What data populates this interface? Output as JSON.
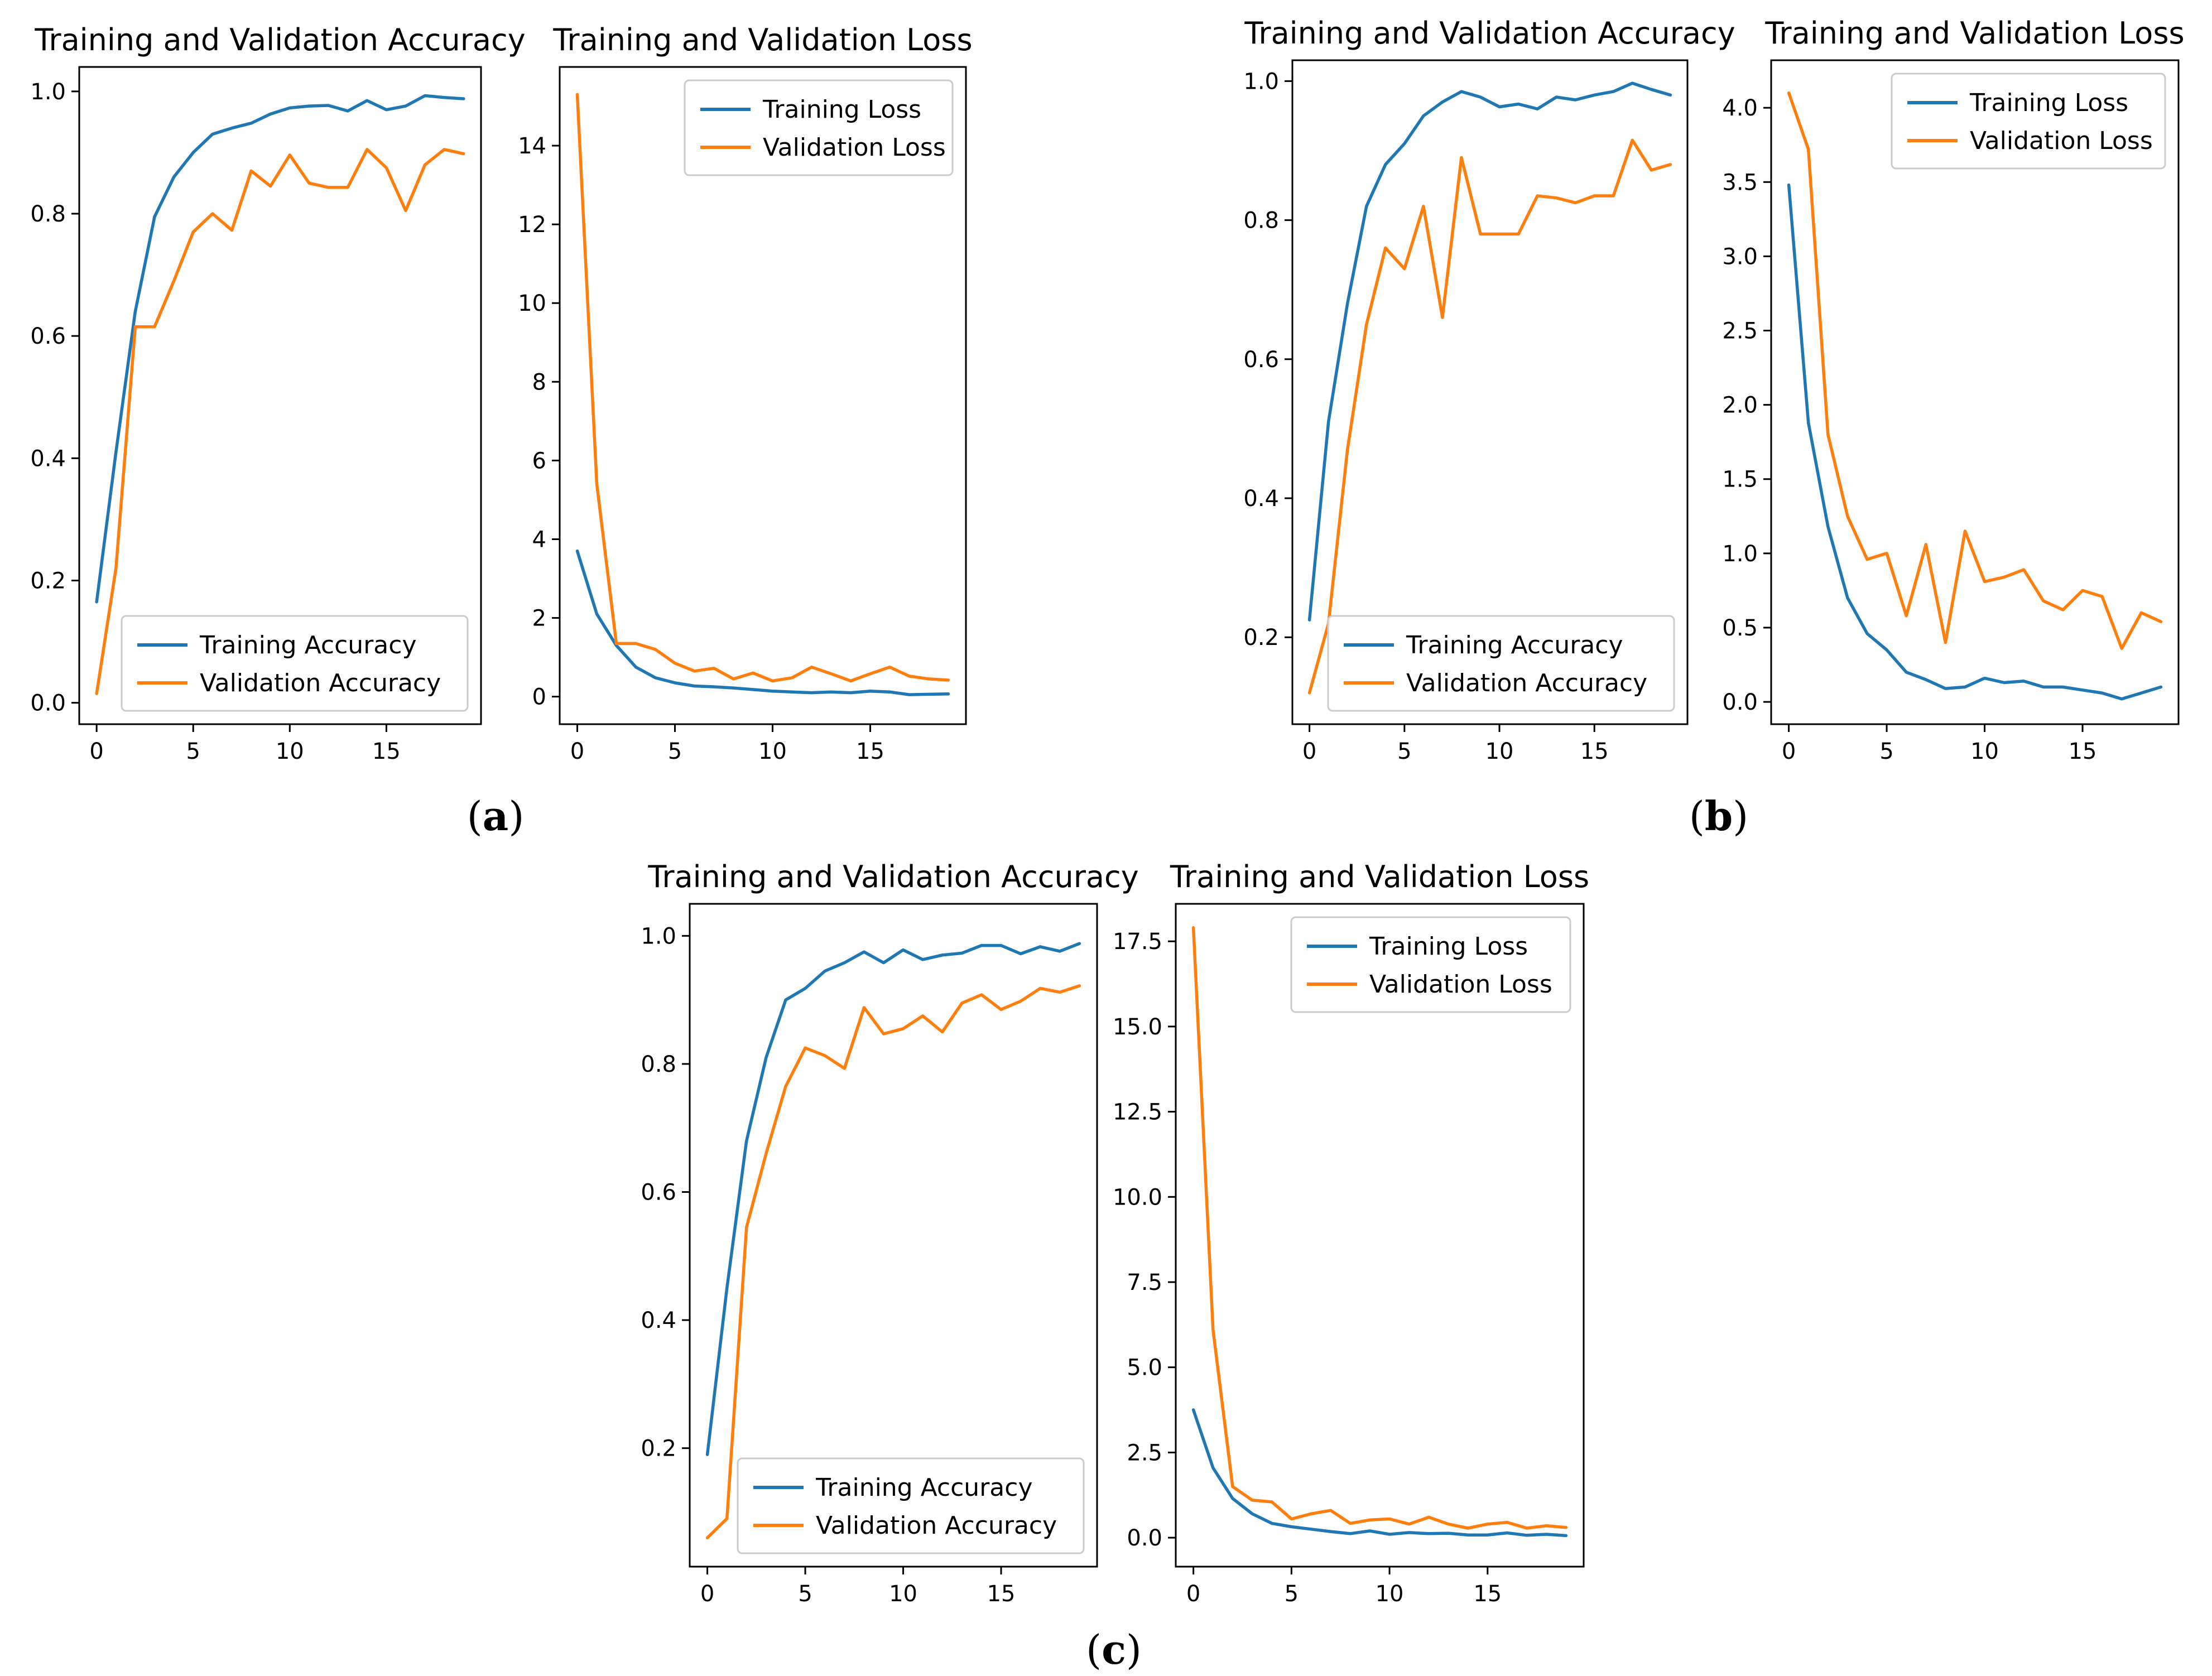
{
  "colors": {
    "training": "#1f77b4",
    "validation": "#ff7f0e"
  },
  "panels": [
    {
      "label": "(a)"
    },
    {
      "label": "(b)"
    },
    {
      "label": "(c)"
    }
  ],
  "chart_data": [
    {
      "type": "line",
      "panel": "(a)",
      "title": "Training and Validation Accuracy",
      "xlabel": "",
      "ylabel": "",
      "x": [
        0,
        1,
        2,
        3,
        4,
        5,
        6,
        7,
        8,
        9,
        10,
        11,
        12,
        13,
        14,
        15,
        16,
        17,
        18,
        19
      ],
      "xlim": [
        -0.9,
        19.9
      ],
      "ylim": [
        -0.035,
        1.04
      ],
      "xticks": [
        0,
        5,
        10,
        15
      ],
      "xtick_labels": [
        "0",
        "5",
        "10",
        "15"
      ],
      "yticks": [
        0,
        0.2,
        0.4,
        0.6,
        0.8,
        1.0
      ],
      "ytick_labels": [
        "0.0",
        "0.2",
        "0.4",
        "0.6",
        "0.8",
        "1.0"
      ],
      "legend": "lower-right",
      "series": [
        {
          "name": "Training Accuracy",
          "values": [
            0.165,
            0.41,
            0.64,
            0.795,
            0.86,
            0.9,
            0.93,
            0.94,
            0.948,
            0.963,
            0.973,
            0.976,
            0.977,
            0.968,
            0.985,
            0.97,
            0.976,
            0.993,
            0.99,
            0.988
          ]
        },
        {
          "name": "Validation Accuracy",
          "values": [
            0.015,
            0.22,
            0.615,
            0.615,
            0.69,
            0.77,
            0.8,
            0.773,
            0.87,
            0.845,
            0.896,
            0.85,
            0.843,
            0.843,
            0.905,
            0.875,
            0.805,
            0.88,
            0.905,
            0.898
          ]
        }
      ]
    },
    {
      "type": "line",
      "panel": "(a)",
      "title": "Training and Validation Loss",
      "xlabel": "",
      "ylabel": "",
      "x": [
        0,
        1,
        2,
        3,
        4,
        5,
        6,
        7,
        8,
        9,
        10,
        11,
        12,
        13,
        14,
        15,
        16,
        17,
        18,
        19
      ],
      "xlim": [
        -0.9,
        19.9
      ],
      "ylim": [
        -0.7,
        16.0
      ],
      "xticks": [
        0,
        5,
        10,
        15
      ],
      "xtick_labels": [
        "0",
        "5",
        "10",
        "15"
      ],
      "yticks": [
        0,
        2,
        4,
        6,
        8,
        10,
        12,
        14
      ],
      "ytick_labels": [
        "0",
        "2",
        "4",
        "6",
        "8",
        "10",
        "12",
        "14"
      ],
      "legend": "upper-right",
      "series": [
        {
          "name": "Training Loss",
          "values": [
            3.7,
            2.1,
            1.3,
            0.75,
            0.48,
            0.35,
            0.27,
            0.25,
            0.22,
            0.18,
            0.14,
            0.12,
            0.1,
            0.12,
            0.1,
            0.14,
            0.12,
            0.05,
            0.06,
            0.07
          ]
        },
        {
          "name": "Validation Loss",
          "values": [
            15.3,
            5.4,
            1.35,
            1.35,
            1.2,
            0.85,
            0.65,
            0.72,
            0.45,
            0.6,
            0.4,
            0.48,
            0.75,
            0.58,
            0.4,
            0.58,
            0.75,
            0.52,
            0.45,
            0.42
          ]
        }
      ]
    },
    {
      "type": "line",
      "panel": "(b)",
      "title": "Training and Validation Accuracy",
      "xlabel": "",
      "ylabel": "",
      "x": [
        0,
        1,
        2,
        3,
        4,
        5,
        6,
        7,
        8,
        9,
        10,
        11,
        12,
        13,
        14,
        15,
        16,
        17,
        18,
        19
      ],
      "xlim": [
        -0.9,
        19.9
      ],
      "ylim": [
        0.075,
        1.03
      ],
      "xticks": [
        0,
        5,
        10,
        15
      ],
      "xtick_labels": [
        "0",
        "5",
        "10",
        "15"
      ],
      "yticks": [
        0.2,
        0.4,
        0.6,
        0.8,
        1.0
      ],
      "ytick_labels": [
        "0.2",
        "0.4",
        "0.6",
        "0.8",
        "1.0"
      ],
      "legend": "lower-right",
      "series": [
        {
          "name": "Training Accuracy",
          "values": [
            0.225,
            0.51,
            0.68,
            0.82,
            0.88,
            0.91,
            0.95,
            0.97,
            0.985,
            0.977,
            0.963,
            0.967,
            0.96,
            0.977,
            0.973,
            0.98,
            0.985,
            0.997,
            0.988,
            0.98
          ]
        },
        {
          "name": "Validation Accuracy",
          "values": [
            0.12,
            0.22,
            0.47,
            0.65,
            0.76,
            0.73,
            0.82,
            0.66,
            0.89,
            0.78,
            0.78,
            0.78,
            0.835,
            0.832,
            0.825,
            0.835,
            0.835,
            0.915,
            0.872,
            0.88
          ]
        }
      ]
    },
    {
      "type": "line",
      "panel": "(b)",
      "title": "Training and Validation Loss",
      "xlabel": "",
      "ylabel": "",
      "x": [
        0,
        1,
        2,
        3,
        4,
        5,
        6,
        7,
        8,
        9,
        10,
        11,
        12,
        13,
        14,
        15,
        16,
        17,
        18,
        19
      ],
      "xlim": [
        -0.9,
        19.9
      ],
      "ylim": [
        -0.15,
        4.32
      ],
      "xticks": [
        0,
        5,
        10,
        15
      ],
      "xtick_labels": [
        "0",
        "5",
        "10",
        "15"
      ],
      "yticks": [
        0,
        0.5,
        1.0,
        1.5,
        2.0,
        2.5,
        3.0,
        3.5,
        4.0
      ],
      "ytick_labels": [
        "0.0",
        "0.5",
        "1.0",
        "1.5",
        "2.0",
        "2.5",
        "3.0",
        "3.5",
        "4.0"
      ],
      "legend": "upper-right",
      "series": [
        {
          "name": "Training Loss",
          "values": [
            3.48,
            1.88,
            1.18,
            0.7,
            0.46,
            0.35,
            0.2,
            0.15,
            0.09,
            0.1,
            0.16,
            0.13,
            0.14,
            0.1,
            0.1,
            0.08,
            0.06,
            0.02,
            0.06,
            0.1
          ]
        },
        {
          "name": "Validation Loss",
          "values": [
            4.1,
            3.72,
            1.8,
            1.25,
            0.96,
            1.0,
            0.58,
            1.06,
            0.4,
            1.15,
            0.81,
            0.84,
            0.89,
            0.68,
            0.62,
            0.75,
            0.71,
            0.36,
            0.6,
            0.54
          ]
        }
      ]
    },
    {
      "type": "line",
      "panel": "(c)",
      "title": "Training and Validation Accuracy",
      "xlabel": "",
      "ylabel": "",
      "x": [
        0,
        1,
        2,
        3,
        4,
        5,
        6,
        7,
        8,
        9,
        10,
        11,
        12,
        13,
        14,
        15,
        16,
        17,
        18,
        19
      ],
      "xlim": [
        -0.9,
        19.9
      ],
      "ylim": [
        0.015,
        1.05
      ],
      "xticks": [
        0,
        5,
        10,
        15
      ],
      "xtick_labels": [
        "0",
        "5",
        "10",
        "15"
      ],
      "yticks": [
        0.2,
        0.4,
        0.6,
        0.8,
        1.0
      ],
      "ytick_labels": [
        "0.2",
        "0.4",
        "0.6",
        "0.8",
        "1.0"
      ],
      "legend": "lower-right",
      "series": [
        {
          "name": "Training Accuracy",
          "values": [
            0.19,
            0.45,
            0.68,
            0.81,
            0.9,
            0.918,
            0.945,
            0.958,
            0.975,
            0.958,
            0.978,
            0.963,
            0.97,
            0.973,
            0.985,
            0.985,
            0.972,
            0.983,
            0.976,
            0.988
          ]
        },
        {
          "name": "Validation Accuracy",
          "values": [
            0.06,
            0.09,
            0.545,
            0.66,
            0.765,
            0.825,
            0.813,
            0.793,
            0.888,
            0.847,
            0.855,
            0.875,
            0.85,
            0.895,
            0.908,
            0.885,
            0.898,
            0.918,
            0.912,
            0.922
          ]
        }
      ]
    },
    {
      "type": "line",
      "panel": "(c)",
      "title": "Training and Validation Loss",
      "xlabel": "",
      "ylabel": "",
      "x": [
        0,
        1,
        2,
        3,
        4,
        5,
        6,
        7,
        8,
        9,
        10,
        11,
        12,
        13,
        14,
        15,
        16,
        17,
        18,
        19
      ],
      "xlim": [
        -0.9,
        19.9
      ],
      "ylim": [
        -0.85,
        18.6
      ],
      "xticks": [
        0,
        5,
        10,
        15
      ],
      "xtick_labels": [
        "0",
        "5",
        "10",
        "15"
      ],
      "yticks": [
        0,
        2.5,
        5.0,
        7.5,
        10.0,
        12.5,
        15.0,
        17.5
      ],
      "ytick_labels": [
        "0.0",
        "2.5",
        "5.0",
        "7.5",
        "10.0",
        "12.5",
        "15.0",
        "17.5"
      ],
      "legend": "upper-right",
      "series": [
        {
          "name": "Training Loss",
          "values": [
            3.75,
            2.05,
            1.15,
            0.7,
            0.42,
            0.32,
            0.25,
            0.18,
            0.12,
            0.2,
            0.1,
            0.15,
            0.12,
            0.13,
            0.08,
            0.08,
            0.14,
            0.07,
            0.1,
            0.06
          ]
        },
        {
          "name": "Validation Loss",
          "values": [
            17.9,
            6.1,
            1.5,
            1.1,
            1.05,
            0.55,
            0.7,
            0.8,
            0.42,
            0.52,
            0.55,
            0.4,
            0.6,
            0.4,
            0.28,
            0.4,
            0.45,
            0.28,
            0.35,
            0.3
          ]
        }
      ]
    }
  ]
}
